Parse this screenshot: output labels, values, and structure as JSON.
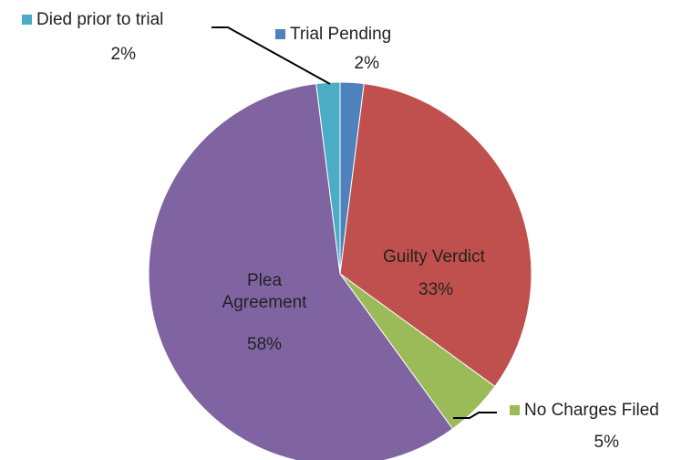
{
  "chart_data": {
    "type": "pie",
    "categories": [
      "Trial Pending",
      "Guilty Verdict",
      "No Charges Filed",
      "Plea Agreement",
      "Died prior to trial"
    ],
    "values": [
      2,
      33,
      5,
      58,
      2
    ],
    "value_labels": [
      "2%",
      "33%",
      "5%",
      "58%",
      "2%"
    ],
    "colors": [
      "#4f81bd",
      "#c0504d",
      "#9bbb59",
      "#8064a2",
      "#4bacc6"
    ]
  }
}
